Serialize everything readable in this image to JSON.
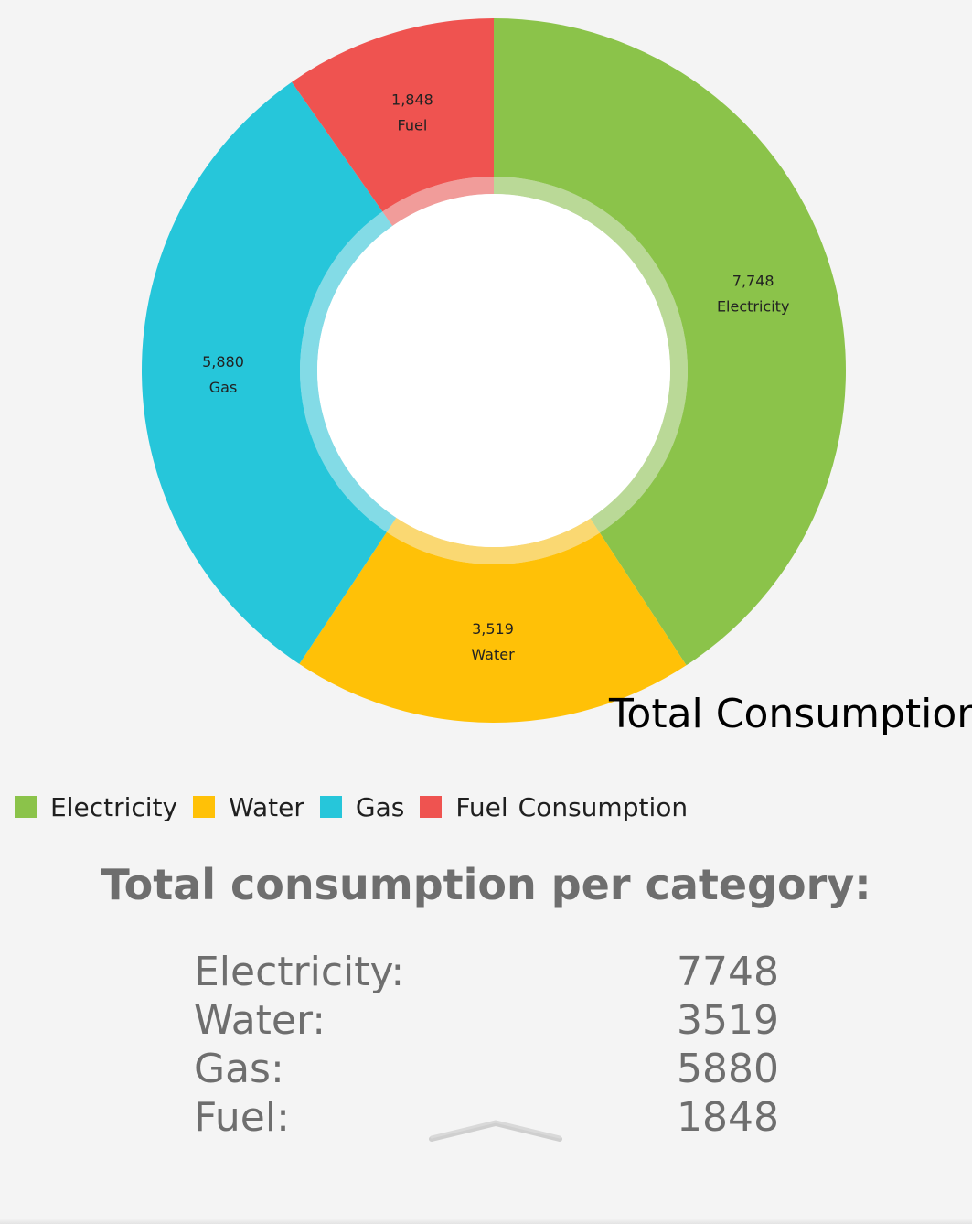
{
  "chart_data": {
    "type": "pie",
    "style": "donut",
    "description": "Total Consumption",
    "slices": [
      {
        "label": "Electricity",
        "value": 7748,
        "value_text": "7,748",
        "color": "#8bc34a"
      },
      {
        "label": "Water",
        "value": 3519,
        "value_text": "3,519",
        "color": "#ffc107"
      },
      {
        "label": "Gas",
        "value": 5880,
        "value_text": "5,880",
        "color": "#26c6da"
      },
      {
        "label": "Fuel",
        "value": 1848,
        "value_text": "1,848",
        "color": "#ef5350"
      }
    ],
    "legend": {
      "position": "bottom-left",
      "entries": [
        "Electricity",
        "Water",
        "Gas",
        "Fuel"
      ],
      "description": "Consumption"
    }
  },
  "summary": {
    "title": "Total consumption per category:",
    "rows": [
      {
        "label": "Electricity:",
        "value": "7748"
      },
      {
        "label": "Water:",
        "value": "3519"
      },
      {
        "label": "Gas:",
        "value": "5880"
      },
      {
        "label": "Fuel:",
        "value": "1848"
      }
    ]
  },
  "icons": {
    "expand_handle": "chevron-up-icon"
  }
}
